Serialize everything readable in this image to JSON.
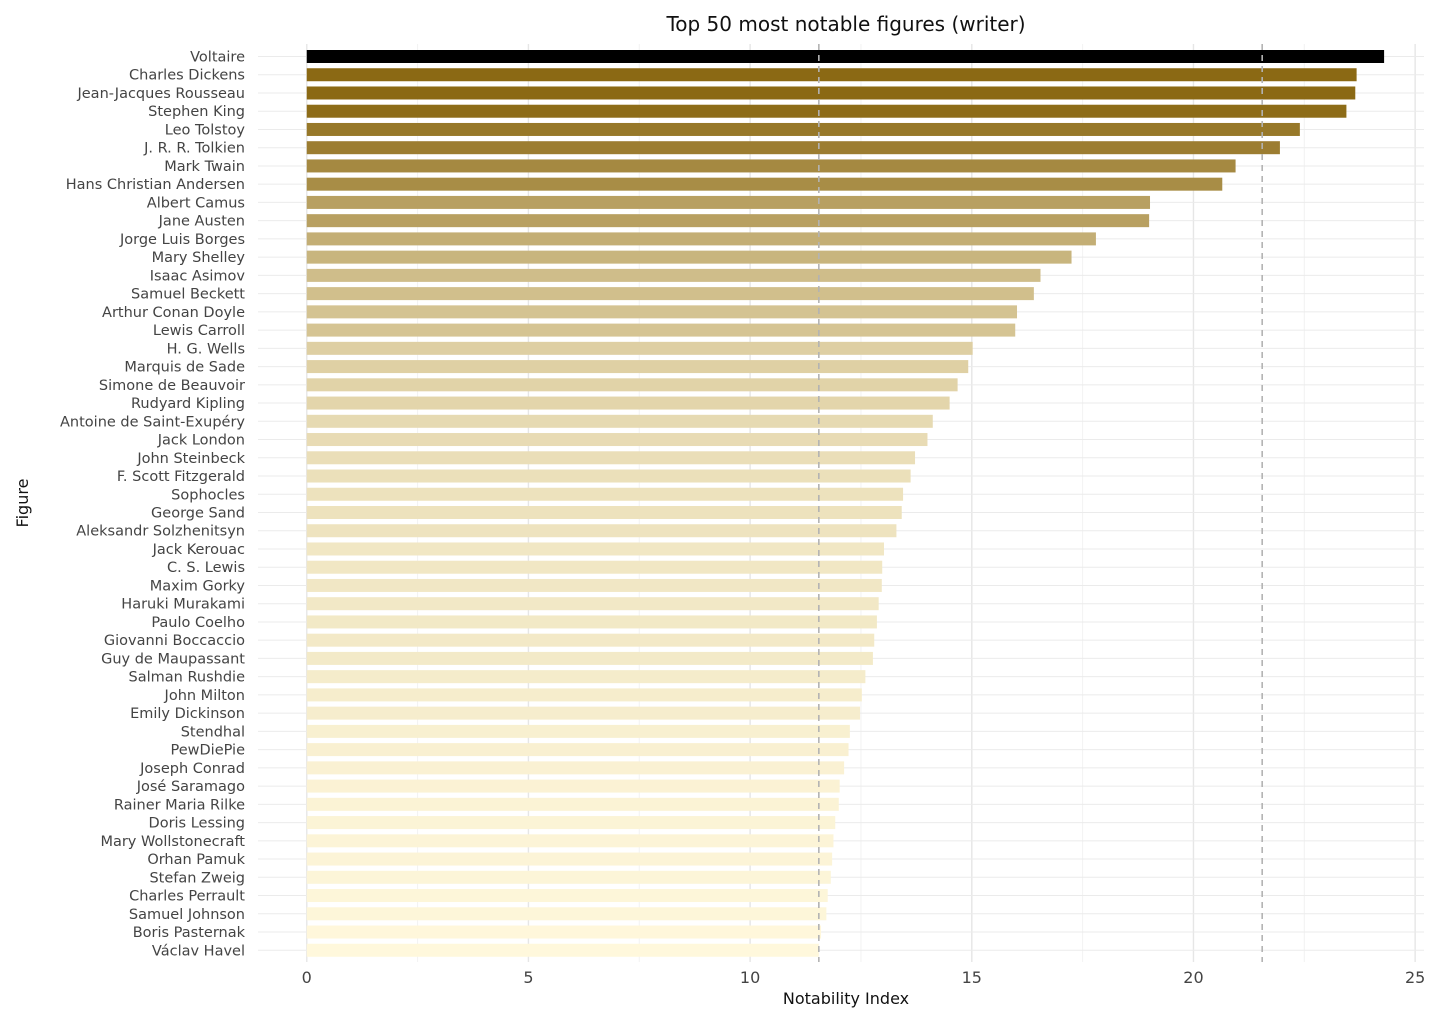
{
  "chart_data": {
    "type": "bar",
    "orientation": "horizontal",
    "title": "Top 50 most notable figures (writer)",
    "xlabel": "Notability Index",
    "ylabel": "Figure",
    "xlim": [
      -1.1,
      25.2
    ],
    "xticks": [
      0,
      5,
      10,
      15,
      20,
      25
    ],
    "grid": true,
    "reference_lines": [
      11.55,
      21.55
    ],
    "color_low": "#FFF8DC",
    "color_high": "#8B6914",
    "color_top": "#000000",
    "categories": [
      "Voltaire",
      "Charles Dickens",
      "Jean-Jacques Rousseau",
      "Stephen King",
      "Leo Tolstoy",
      "J. R. R. Tolkien",
      "Mark Twain",
      "Hans Christian Andersen",
      "Albert Camus",
      "Jane Austen",
      "Jorge Luis Borges",
      "Mary Shelley",
      "Isaac Asimov",
      "Samuel Beckett",
      "Arthur Conan Doyle",
      "Lewis Carroll",
      "H. G. Wells",
      "Marquis de Sade",
      "Simone de Beauvoir",
      "Rudyard Kipling",
      "Antoine de Saint-Exupéry",
      "Jack London",
      "John Steinbeck",
      "F. Scott Fitzgerald",
      "Sophocles",
      "George Sand",
      "Aleksandr Solzhenitsyn",
      "Jack Kerouac",
      "C. S. Lewis",
      "Maxim Gorky",
      "Haruki Murakami",
      "Paulo Coelho",
      "Giovanni Boccaccio",
      "Guy de Maupassant",
      "Salman Rushdie",
      "John Milton",
      "Emily Dickinson",
      "Stendhal",
      "PewDiePie",
      "Joseph Conrad",
      "José Saramago",
      "Rainer Maria Rilke",
      "Doris Lessing",
      "Mary Wollstonecraft",
      "Orhan Pamuk",
      "Stefan Zweig",
      "Charles Perrault",
      "Samuel Johnson",
      "Boris Pasternak",
      "Václav Havel"
    ],
    "values": [
      24.3,
      23.68,
      23.65,
      23.45,
      22.4,
      21.95,
      20.95,
      20.65,
      19.02,
      19.0,
      17.8,
      17.25,
      16.55,
      16.4,
      16.02,
      15.98,
      15.02,
      14.92,
      14.68,
      14.5,
      14.12,
      14.0,
      13.72,
      13.62,
      13.45,
      13.42,
      13.3,
      13.02,
      12.98,
      12.97,
      12.9,
      12.86,
      12.8,
      12.77,
      12.6,
      12.52,
      12.48,
      12.25,
      12.22,
      12.12,
      12.02,
      12.0,
      11.92,
      11.88,
      11.85,
      11.82,
      11.75,
      11.72,
      11.6,
      11.55
    ]
  }
}
